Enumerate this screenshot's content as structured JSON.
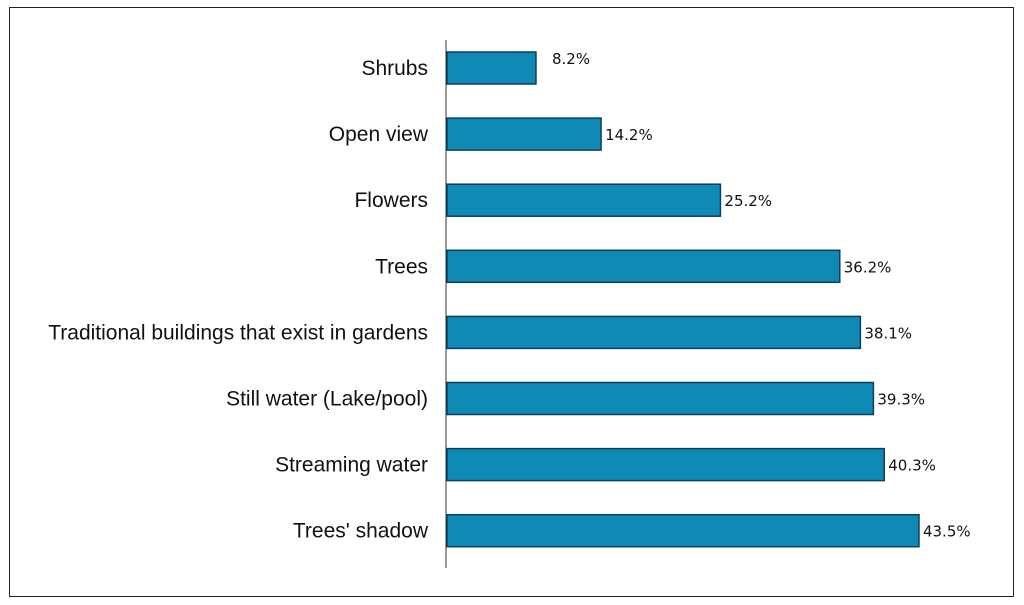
{
  "chart_data": {
    "type": "bar",
    "orientation": "horizontal",
    "categories": [
      "Shrubs",
      "Open view",
      "Flowers",
      "Trees",
      "Traditional buildings that exist in gardens",
      "Still water (Lake/pool)",
      "Streaming water",
      "Trees' shadow"
    ],
    "values": [
      8.2,
      14.2,
      25.2,
      36.2,
      38.1,
      39.3,
      40.3,
      43.5
    ],
    "value_labels": [
      "8.2%",
      "14.2%",
      "25.2%",
      "36.2%",
      "38.1%",
      "39.3%",
      "40.3%",
      "43.5%"
    ],
    "value_unit": "%",
    "xlim": [
      0,
      50
    ],
    "grid": false,
    "legend": "none",
    "bar_color": "#0e8ab4",
    "bar_edge_color": "#0d3f5c"
  }
}
